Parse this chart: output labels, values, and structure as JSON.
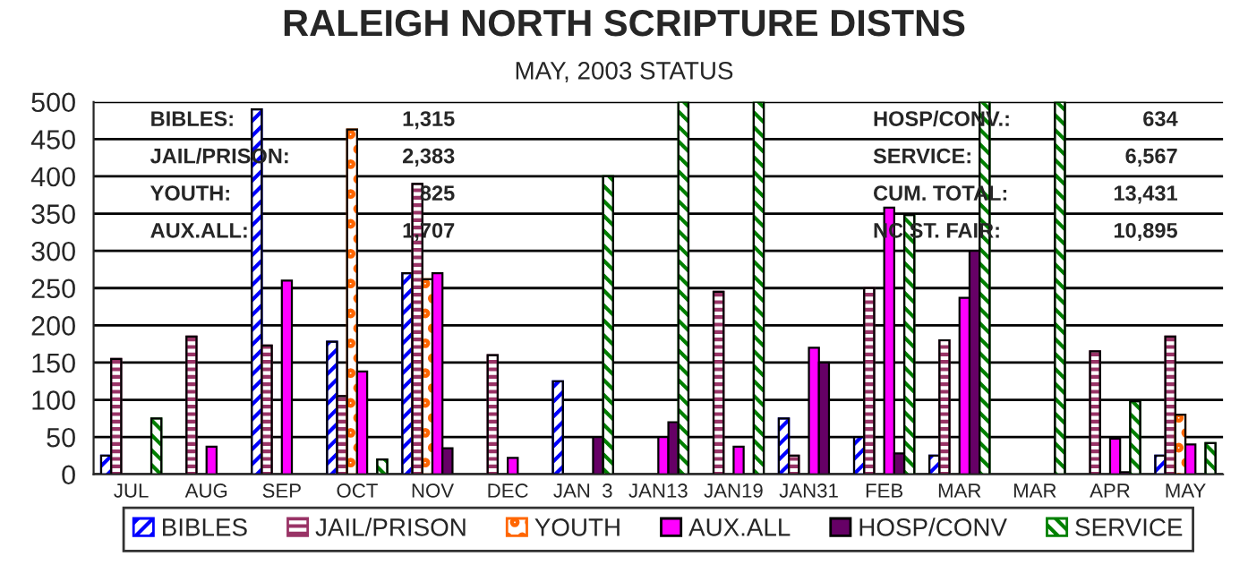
{
  "chart_data": {
    "type": "bar",
    "title": "RALEIGH NORTH SCRIPTURE DISTNS",
    "subtitle": "MAY, 2003 STATUS",
    "categories": [
      "JUL",
      "AUG",
      "SEP",
      "OCT",
      "NOV",
      "DEC",
      "JAN  3",
      "JAN13",
      "JAN19",
      "JAN31",
      "FEB",
      "MAR",
      "MAR",
      "APR",
      "MAY"
    ],
    "series": [
      {
        "name": "BIBLES",
        "color": "#0000ff",
        "values": [
          25,
          null,
          490,
          178,
          270,
          null,
          125,
          null,
          null,
          75,
          50,
          25,
          null,
          null,
          25
        ]
      },
      {
        "name": "JAIL/PRISON",
        "color": "#993366",
        "values": [
          155,
          185,
          173,
          105,
          390,
          160,
          null,
          null,
          245,
          25,
          250,
          180,
          null,
          165,
          185
        ]
      },
      {
        "name": "YOUTH",
        "color": "#ff6600",
        "values": [
          null,
          null,
          null,
          463,
          262,
          null,
          null,
          null,
          null,
          null,
          null,
          null,
          null,
          null,
          80
        ]
      },
      {
        "name": "AUX.ALL",
        "color": "#ff00ff",
        "values": [
          null,
          37,
          260,
          138,
          270,
          22,
          null,
          50,
          37,
          170,
          358,
          237,
          null,
          48,
          40
        ]
      },
      {
        "name": "HOSP/CONV",
        "color": "#660066",
        "values": [
          null,
          null,
          null,
          null,
          35,
          null,
          50,
          70,
          null,
          150,
          28,
          300,
          null,
          3,
          null
        ]
      },
      {
        "name": "SERVICE",
        "color": "#008000",
        "values": [
          75,
          null,
          null,
          20,
          null,
          null,
          400,
          500,
          500,
          null,
          348,
          500,
          500,
          98,
          42
        ]
      }
    ],
    "ylim": [
      0,
      500
    ],
    "yticks": [
      0,
      50,
      100,
      150,
      200,
      250,
      300,
      350,
      400,
      450,
      500
    ],
    "grid": "y",
    "legend": "bottom",
    "annotations": [
      "BIBLES:",
      "1,315",
      "JAIL/PRISON:",
      "2,383",
      "YOUTH:",
      "825",
      "AUX.ALL:",
      "1,707",
      "HOSP/CONV.:",
      "634",
      "SERVICE:",
      "6,567",
      "CUM. TOTAL:",
      "13,431",
      "NC ST. FAIR:",
      "10,895"
    ]
  }
}
